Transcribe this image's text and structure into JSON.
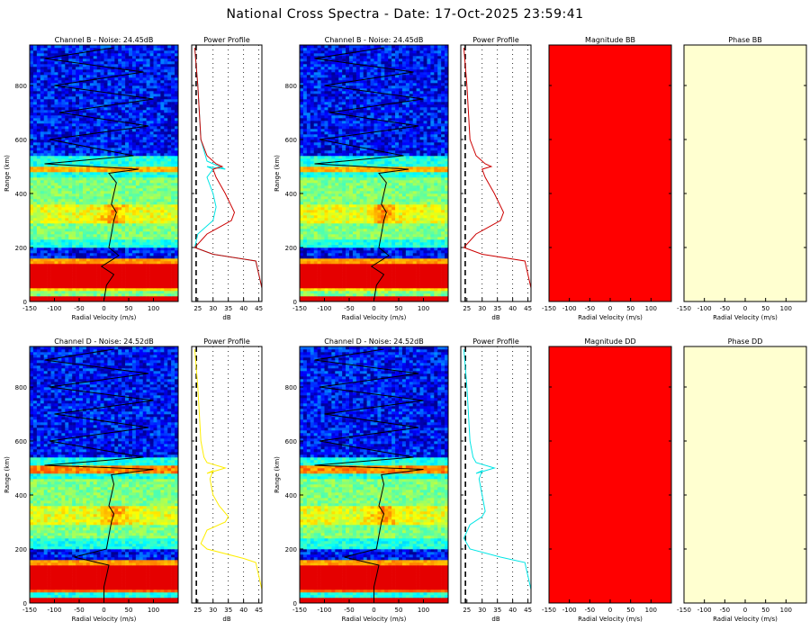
{
  "figure": {
    "title": "National Cross Spectra - Date: 17-Oct-2025 23:59:41",
    "rows": [
      {
        "spectra": [
          {
            "title": "Channel B - Noise: 24.45dB",
            "xlabel": "Radial Velocity (m/s)",
            "ylabel": "Range (km)"
          },
          {
            "title": "Channel B - Noise: 24.45dB",
            "xlabel": "Radial Velocity (m/s)",
            "ylabel": "Range (km)"
          }
        ],
        "profiles": [
          {
            "title": "Power Profile",
            "xlabel": "dB",
            "lines": [
              "#00e5e5",
              "#cc0000"
            ]
          },
          {
            "title": "Power Profile",
            "xlabel": "dB",
            "lines": [
              "#cc0000"
            ]
          }
        ],
        "cross": [
          {
            "title": "Magnitude BB",
            "xlabel": "Radial Velocity (m/s)",
            "fill": "#ff0000"
          },
          {
            "title": "Phase BB",
            "xlabel": "Radial Velocity (m/s)",
            "fill": "#ffffd0"
          }
        ]
      },
      {
        "spectra": [
          {
            "title": "Channel D - Noise: 24.52dB",
            "xlabel": "Radial Velocity (m/s)",
            "ylabel": "Range (km)"
          },
          {
            "title": "Channel D - Noise: 24.52dB",
            "xlabel": "Radial Velocity (m/s)",
            "ylabel": "Range (km)"
          }
        ],
        "profiles": [
          {
            "title": "Power Profile",
            "xlabel": "dB",
            "lines": [
              "#ffee00"
            ]
          },
          {
            "title": "Power Profile",
            "xlabel": "dB",
            "lines": [
              "#00e5e5"
            ]
          }
        ],
        "cross": [
          {
            "title": "Magnitude DD",
            "xlabel": "Radial Velocity (m/s)",
            "fill": "#ff0000"
          },
          {
            "title": "Phase DD",
            "xlabel": "Radial Velocity (m/s)",
            "fill": "#ffffd0"
          }
        ]
      }
    ]
  },
  "chart_data": [
    {
      "type": "heatmap",
      "title": "Channel B - Noise: 24.45dB",
      "xlabel": "Radial Velocity (m/s)",
      "ylabel": "Range (km)",
      "xlim": [
        -150,
        150
      ],
      "ylim": [
        0,
        950
      ],
      "xticks": [
        -150,
        -100,
        -50,
        0,
        50,
        100
      ],
      "yticks": [
        0,
        200,
        400,
        600,
        800
      ],
      "colormap": "jet",
      "noise_db": 24.45,
      "bands": [
        {
          "from": 0,
          "to": 25,
          "level": "red"
        },
        {
          "from": 25,
          "to": 40,
          "level": "cyan-green"
        },
        {
          "from": 40,
          "to": 55,
          "level": "yellow"
        },
        {
          "from": 55,
          "to": 110,
          "level": "red"
        },
        {
          "from": 110,
          "to": 140,
          "level": "red"
        },
        {
          "from": 140,
          "to": 160,
          "level": "orange-yellow"
        },
        {
          "from": 160,
          "to": 200,
          "level": "blue"
        },
        {
          "from": 200,
          "to": 230,
          "level": "cyan"
        },
        {
          "from": 230,
          "to": 290,
          "level": "cyan-green"
        },
        {
          "from": 290,
          "to": 360,
          "level": "green-yellow"
        },
        {
          "from": 360,
          "to": 460,
          "level": "cyan-green"
        },
        {
          "from": 460,
          "to": 485,
          "level": "cyan"
        },
        {
          "from": 485,
          "to": 505,
          "level": "yellow-orange"
        },
        {
          "from": 505,
          "to": 540,
          "level": "cyan"
        },
        {
          "from": 540,
          "to": 950,
          "level": "blue"
        }
      ],
      "doppler_trace": {
        "range_km": [
          5,
          60,
          100,
          130,
          170,
          200,
          250,
          300,
          330,
          360,
          400,
          440,
          475,
          490,
          510,
          540,
          600,
          650,
          700,
          750,
          800,
          850,
          900,
          940
        ],
        "velocity_ms": [
          0,
          5,
          20,
          -5,
          30,
          10,
          15,
          20,
          25,
          15,
          20,
          25,
          10,
          70,
          -120,
          60,
          -110,
          90,
          -90,
          100,
          -100,
          80,
          -120,
          20
        ]
      }
    },
    {
      "type": "line",
      "title": "Power Profile",
      "xlabel": "dB",
      "ylabel": "Range (km)",
      "xlim": [
        23,
        46
      ],
      "ylim": [
        0,
        950
      ],
      "xticks": [
        25,
        30,
        35,
        40,
        45
      ],
      "noise_db": 24.45,
      "series": [
        {
          "color": "#00e5e5",
          "x": [
            46,
            44,
            30,
            24,
            25,
            30,
            31,
            30,
            28,
            30,
            28,
            34,
            28,
            26,
            25,
            24
          ],
          "y": [
            50,
            150,
            175,
            200,
            250,
            300,
            350,
            400,
            460,
            490,
            500,
            490,
            520,
            600,
            800,
            940
          ]
        },
        {
          "color": "#cc0000",
          "x": [
            46,
            44,
            30,
            24,
            28,
            36,
            37,
            34,
            31,
            30,
            33,
            31,
            28,
            26,
            25,
            24
          ],
          "y": [
            50,
            150,
            175,
            200,
            250,
            300,
            330,
            400,
            460,
            490,
            500,
            510,
            540,
            600,
            800,
            940
          ]
        }
      ]
    },
    {
      "type": "heatmap",
      "title": "Magnitude BB",
      "xlabel": "Radial Velocity (m/s)",
      "xlim": [
        -150,
        150
      ],
      "xticks": [
        -150,
        -100,
        -50,
        0,
        50,
        100
      ],
      "ylim": [
        0,
        950
      ],
      "uniform_color": "#ff0000"
    },
    {
      "type": "heatmap",
      "title": "Phase BB",
      "xlabel": "Radial Velocity (m/s)",
      "xlim": [
        -150,
        150
      ],
      "xticks": [
        -150,
        -100,
        -50,
        0,
        50,
        100
      ],
      "ylim": [
        0,
        950
      ],
      "uniform_color": "#ffffd0"
    },
    {
      "type": "heatmap",
      "title": "Channel D - Noise: 24.52dB",
      "xlabel": "Radial Velocity (m/s)",
      "ylabel": "Range (km)",
      "xlim": [
        -150,
        150
      ],
      "ylim": [
        0,
        950
      ],
      "xticks": [
        -150,
        -100,
        -50,
        0,
        50,
        100
      ],
      "yticks": [
        0,
        200,
        400,
        600,
        800
      ],
      "colormap": "jet",
      "noise_db": 24.52,
      "bands": [
        {
          "from": 0,
          "to": 25,
          "level": "red"
        },
        {
          "from": 25,
          "to": 40,
          "level": "cyan"
        },
        {
          "from": 40,
          "to": 55,
          "level": "orange"
        },
        {
          "from": 55,
          "to": 140,
          "level": "red"
        },
        {
          "from": 140,
          "to": 160,
          "level": "orange-yellow"
        },
        {
          "from": 160,
          "to": 200,
          "level": "blue"
        },
        {
          "from": 200,
          "to": 240,
          "level": "cyan"
        },
        {
          "from": 240,
          "to": 290,
          "level": "cyan-green"
        },
        {
          "from": 290,
          "to": 360,
          "level": "green-yellow"
        },
        {
          "from": 360,
          "to": 460,
          "level": "cyan-green"
        },
        {
          "from": 460,
          "to": 480,
          "level": "cyan"
        },
        {
          "from": 480,
          "to": 510,
          "level": "yellow-red"
        },
        {
          "from": 510,
          "to": 540,
          "level": "cyan"
        },
        {
          "from": 540,
          "to": 950,
          "level": "blue"
        }
      ],
      "doppler_trace": {
        "range_km": [
          5,
          60,
          100,
          140,
          170,
          200,
          250,
          300,
          330,
          360,
          400,
          440,
          475,
          495,
          510,
          540,
          600,
          650,
          700,
          750,
          800,
          850,
          900,
          940
        ],
        "velocity_ms": [
          0,
          0,
          5,
          10,
          -60,
          5,
          10,
          15,
          20,
          10,
          15,
          20,
          15,
          100,
          -120,
          80,
          -110,
          90,
          -100,
          100,
          -110,
          90,
          -120,
          20
        ]
      }
    },
    {
      "type": "line",
      "title": "Power Profile",
      "xlabel": "dB",
      "ylabel": "Range (km)",
      "xlim": [
        23,
        46
      ],
      "ylim": [
        0,
        950
      ],
      "xticks": [
        25,
        30,
        35,
        40,
        45
      ],
      "noise_db": 24.52,
      "series": [
        {
          "color": "#ffee00",
          "x": [
            46,
            44,
            40,
            28,
            26,
            28,
            34,
            35,
            32,
            30,
            29,
            30,
            28,
            34,
            28,
            27,
            26,
            25,
            24
          ],
          "y": [
            50,
            150,
            165,
            200,
            220,
            270,
            300,
            320,
            360,
            400,
            460,
            490,
            480,
            500,
            520,
            540,
            600,
            800,
            940
          ]
        }
      ]
    },
    {
      "type": "line",
      "title": "Power Profile",
      "xlabel": "dB",
      "ylabel": "Range (km)",
      "xlim": [
        23,
        46
      ],
      "ylim": [
        0,
        950
      ],
      "xticks": [
        25,
        30,
        35,
        40,
        45
      ],
      "noise_db": 24.52,
      "series": [
        {
          "color": "#00e5e5",
          "x": [
            46,
            44,
            36,
            26,
            24,
            26,
            30,
            31,
            30,
            29,
            30,
            28,
            34,
            28,
            27,
            26,
            25,
            24
          ],
          "y": [
            50,
            150,
            170,
            200,
            240,
            290,
            320,
            340,
            400,
            460,
            490,
            480,
            500,
            520,
            540,
            600,
            800,
            940
          ]
        }
      ]
    },
    {
      "type": "heatmap",
      "title": "Magnitude DD",
      "xlabel": "Radial Velocity (m/s)",
      "xlim": [
        -150,
        150
      ],
      "xticks": [
        -150,
        -100,
        -50,
        0,
        50,
        100
      ],
      "ylim": [
        0,
        950
      ],
      "uniform_color": "#ff0000"
    },
    {
      "type": "heatmap",
      "title": "Phase DD",
      "xlabel": "Radial Velocity (m/s)",
      "xlim": [
        -150,
        150
      ],
      "xticks": [
        -150,
        -100,
        -50,
        0,
        50,
        100
      ],
      "ylim": [
        0,
        950
      ],
      "uniform_color": "#ffffd0"
    }
  ]
}
